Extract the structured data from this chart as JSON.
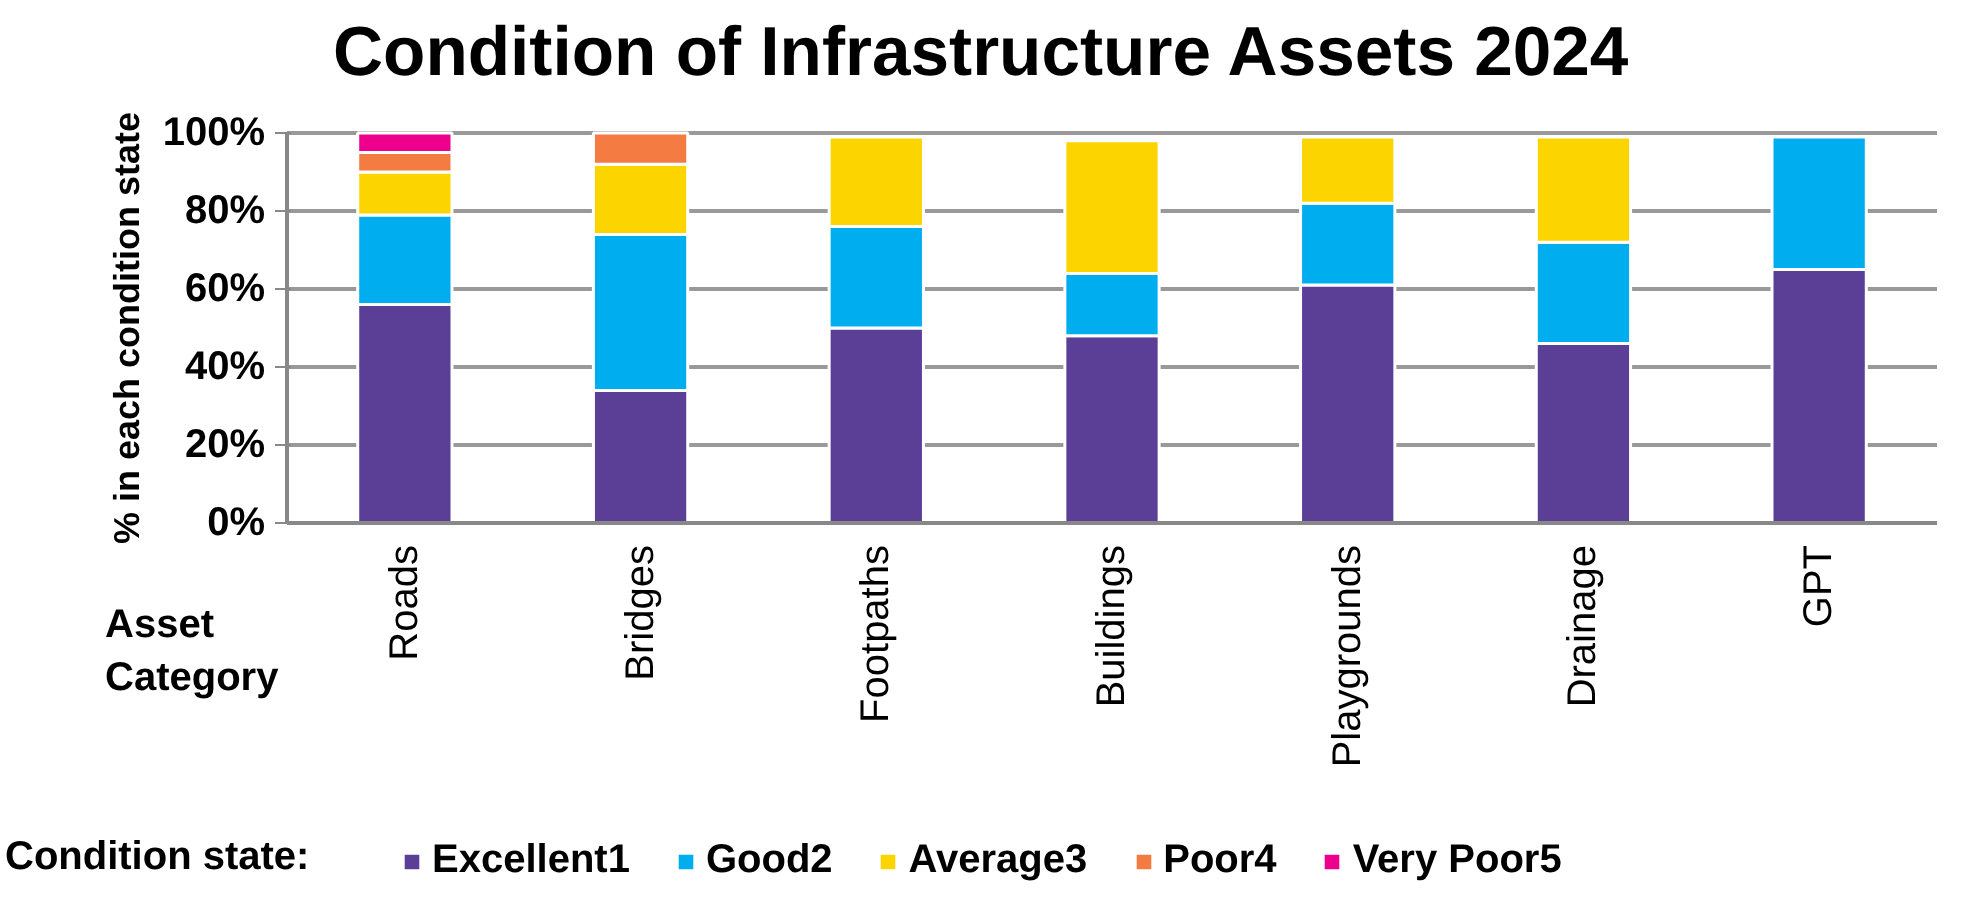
{
  "chart_data": {
    "type": "bar",
    "stacked": true,
    "title": "Condition of Infrastructure Assets 2024",
    "xlabel": "Asset Category",
    "ylabel": "% in each condition state",
    "legend_title": "Condition state:",
    "categories": [
      "Roads",
      "Bridges",
      "Footpaths",
      "Buildings",
      "Playgrounds",
      "Drainage",
      "GPT"
    ],
    "series": [
      {
        "name": "Excellent1",
        "color": "#5b3f96",
        "values": [
          56,
          34,
          50,
          48,
          61,
          46,
          65
        ]
      },
      {
        "name": "Good2",
        "color": "#00aeef",
        "values": [
          23,
          40,
          26,
          16,
          21,
          26,
          34
        ]
      },
      {
        "name": "Average3",
        "color": "#fcd500",
        "values": [
          11,
          18,
          23,
          34,
          17,
          27,
          null
        ]
      },
      {
        "name": "Poor4",
        "color": "#f47b42",
        "values": [
          5,
          8,
          null,
          null,
          null,
          null,
          null
        ]
      },
      {
        "name": "Very Poor5",
        "color": "#ec008c",
        "values": [
          5,
          null,
          null,
          null,
          null,
          null,
          null
        ]
      }
    ],
    "ylim": [
      0,
      100
    ],
    "yticks": [
      {
        "value": 0,
        "label": "0%"
      },
      {
        "value": 20,
        "label": "20%"
      },
      {
        "value": 40,
        "label": "40%"
      },
      {
        "value": 60,
        "label": "60%"
      },
      {
        "value": 80,
        "label": "80%"
      },
      {
        "value": 100,
        "label": "100%"
      }
    ],
    "grid": "y",
    "legend": "bottom"
  }
}
